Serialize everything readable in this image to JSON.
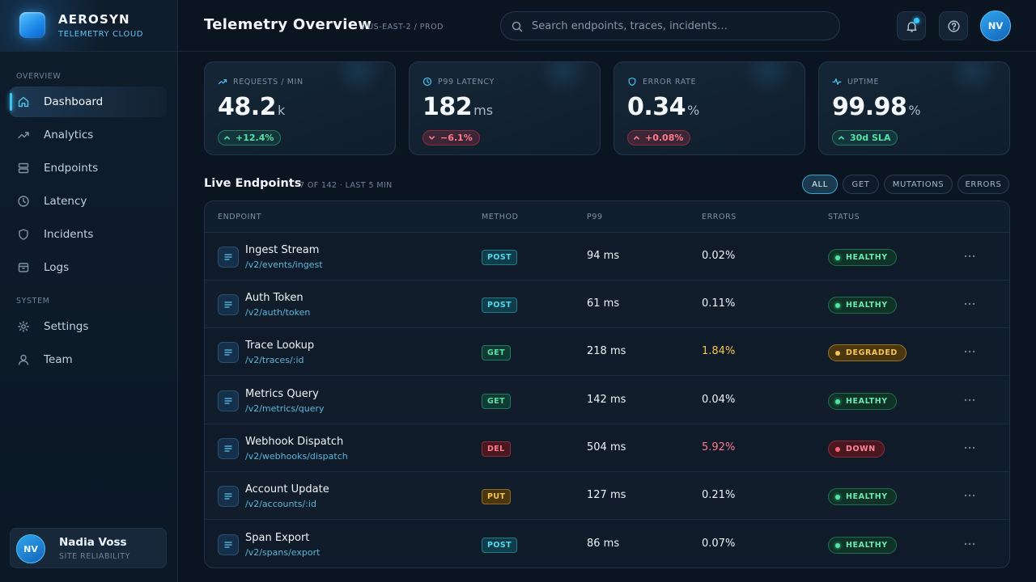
{
  "brand": {
    "name": "AEROSYN",
    "subtitle": "TELEMETRY CLOUD"
  },
  "sidebar": {
    "sections": [
      {
        "label": "OVERVIEW"
      },
      {
        "label": "SYSTEM"
      }
    ],
    "items": [
      {
        "label": "Dashboard",
        "icon": "home-icon",
        "active": true
      },
      {
        "label": "Analytics",
        "icon": "trending-up-icon"
      },
      {
        "label": "Endpoints",
        "icon": "server-icon"
      },
      {
        "label": "Latency",
        "icon": "clock-icon"
      },
      {
        "label": "Incidents",
        "icon": "shield-icon"
      },
      {
        "label": "Logs",
        "icon": "archive-icon"
      },
      {
        "label": "Settings",
        "icon": "gear-icon"
      },
      {
        "label": "Team",
        "icon": "user-icon"
      }
    ],
    "user": {
      "initials": "NV",
      "name": "Nadia Voss",
      "role": "SITE RELIABILITY"
    }
  },
  "header": {
    "title": "Telemetry Overview",
    "breadcrumb": "/ US-EAST-2 / PROD",
    "search_placeholder": "Search endpoints, traces, incidents…",
    "avatar_initials": "NV"
  },
  "stats": [
    {
      "label": "REQUESTS / MIN",
      "icon": "trending-up-icon",
      "value": "48.2",
      "unit": "k",
      "delta": "+12.4%",
      "trend": "up"
    },
    {
      "label": "P99 LATENCY",
      "icon": "clock-icon",
      "value": "182",
      "unit": "ms",
      "delta": "−6.1%",
      "trend": "down"
    },
    {
      "label": "ERROR RATE",
      "icon": "shield-icon",
      "value": "0.34",
      "unit": "%",
      "delta": "+0.08%",
      "trend": "up-bad"
    },
    {
      "label": "UPTIME",
      "icon": "activity-icon",
      "value": "99.98",
      "unit": "%",
      "delta": "30d SLA",
      "trend": "up"
    }
  ],
  "endpoints_section": {
    "title": "Live Endpoints",
    "meta": "7 OF 142 · LAST 5 MIN",
    "filters": [
      {
        "label": "ALL",
        "active": true
      },
      {
        "label": "GET"
      },
      {
        "label": "MUTATIONS"
      },
      {
        "label": "ERRORS"
      }
    ],
    "columns": [
      "ENDPOINT",
      "METHOD",
      "P99",
      "ERRORS",
      "STATUS"
    ],
    "rows": [
      {
        "name": "Ingest Stream",
        "path": "/v2/events/ingest",
        "method": "POST",
        "p99": "94 ms",
        "errors": "0.02%",
        "status": "HEALTHY"
      },
      {
        "name": "Auth Token",
        "path": "/v2/auth/token",
        "method": "POST",
        "p99": "61 ms",
        "errors": "0.11%",
        "status": "HEALTHY"
      },
      {
        "name": "Trace Lookup",
        "path": "/v2/traces/:id",
        "method": "GET",
        "p99": "218 ms",
        "errors": "1.84%",
        "status": "DEGRADED"
      },
      {
        "name": "Metrics Query",
        "path": "/v2/metrics/query",
        "method": "GET",
        "p99": "142 ms",
        "errors": "0.04%",
        "status": "HEALTHY"
      },
      {
        "name": "Webhook Dispatch",
        "path": "/v2/webhooks/dispatch",
        "method": "DEL",
        "p99": "504 ms",
        "errors": "5.92%",
        "status": "DOWN"
      },
      {
        "name": "Account Update",
        "path": "/v2/accounts/:id",
        "method": "PUT",
        "p99": "127 ms",
        "errors": "0.21%",
        "status": "HEALTHY"
      },
      {
        "name": "Span Export",
        "path": "/v2/spans/export",
        "method": "POST",
        "p99": "86 ms",
        "errors": "0.07%",
        "status": "HEALTHY"
      }
    ]
  },
  "colors": {
    "accent": "#3ec3f2",
    "healthy": "#4ee59f",
    "degraded": "#f5c658",
    "down": "#ff6479",
    "background": "#0b1522"
  }
}
